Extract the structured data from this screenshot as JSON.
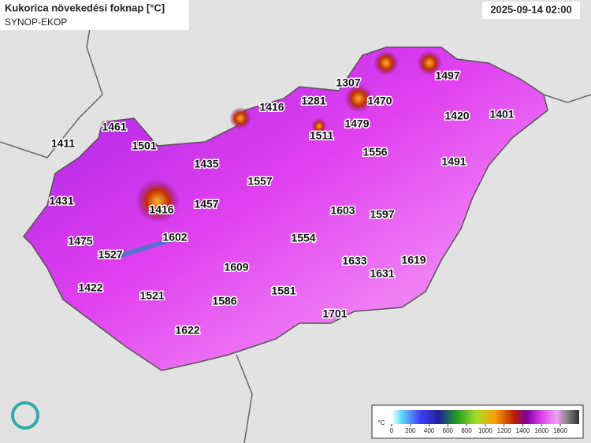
{
  "header": {
    "title": "Kukorica növekedési foknap [°C]",
    "subtitle": "SYNOP-EKOP",
    "timestamp": "2025-09-14 02:00"
  },
  "stations": [
    {
      "value": 1461
    },
    {
      "value": 1411
    },
    {
      "value": 1501
    },
    {
      "value": 1435
    },
    {
      "value": 1431
    },
    {
      "value": 1416
    },
    {
      "value": 1457
    },
    {
      "value": 1475
    },
    {
      "value": 1527
    },
    {
      "value": 1602
    },
    {
      "value": 1422
    },
    {
      "value": 1521
    },
    {
      "value": 1586
    },
    {
      "value": 1609
    },
    {
      "value": 1581
    },
    {
      "value": 1622
    },
    {
      "value": 1554
    },
    {
      "value": 1557
    },
    {
      "value": 1416
    },
    {
      "value": 1281
    },
    {
      "value": 1307
    },
    {
      "value": 1470
    },
    {
      "value": 1511
    },
    {
      "value": 1479
    },
    {
      "value": 1556
    },
    {
      "value": 1603
    },
    {
      "value": 1597
    },
    {
      "value": 1633
    },
    {
      "value": 1631
    },
    {
      "value": 1619
    },
    {
      "value": 1701
    },
    {
      "value": 1497
    },
    {
      "value": 1420
    },
    {
      "value": 1401
    },
    {
      "value": 1491
    }
  ],
  "legend": {
    "unit": "°C",
    "ticks": [
      0,
      200,
      400,
      600,
      800,
      1000,
      1200,
      1400,
      1600,
      1800
    ]
  }
}
